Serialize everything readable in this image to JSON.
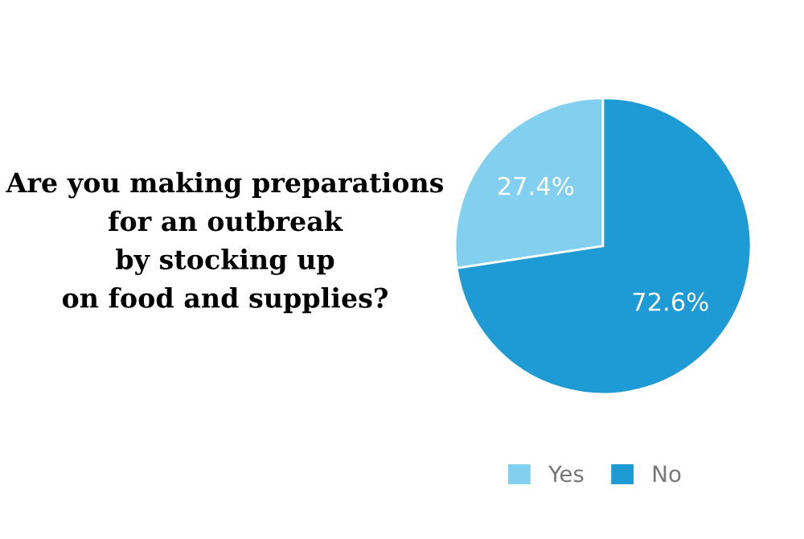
{
  "chart_data": {
    "type": "pie",
    "title": "Are you making preparations\nfor an outbreak\nby stocking up\non food and supplies?",
    "categories": [
      "Yes",
      "No"
    ],
    "values": [
      27.4,
      72.6
    ],
    "colors": [
      "#82cfef",
      "#1e9bd5"
    ],
    "value_labels": [
      "27.4%",
      "72.6%"
    ],
    "legend": "bottom"
  }
}
